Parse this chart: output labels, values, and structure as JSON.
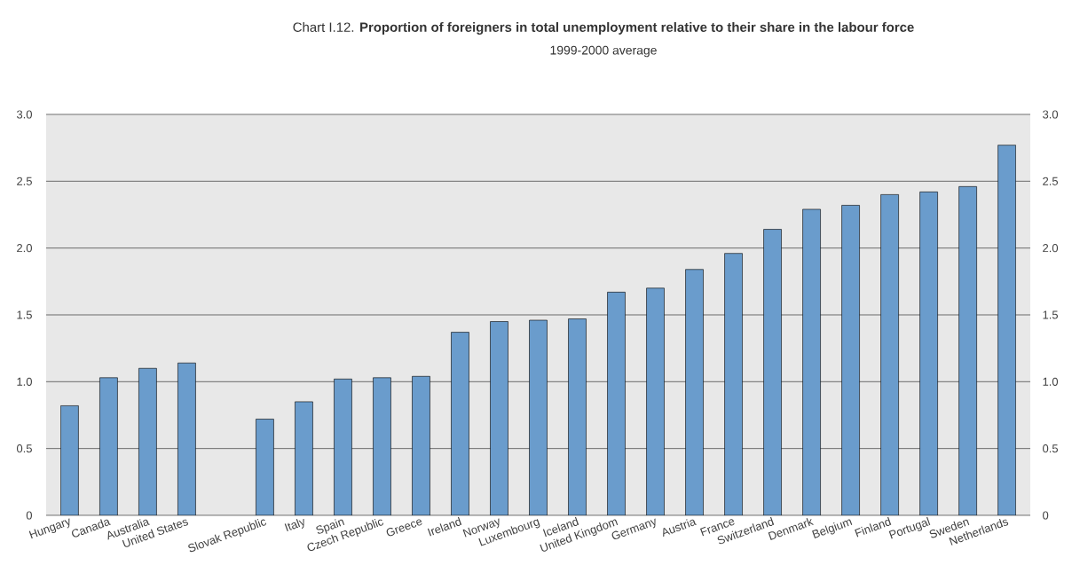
{
  "chart_data": {
    "type": "bar",
    "title": "Chart I.12. **Proportion of foreigners in total unemployment relative to their share in the labour force**",
    "subtitle": "1999-2000 average",
    "categories": [
      "Hungary",
      "Canada",
      "Australia",
      "United States",
      null,
      "Slovak Republic",
      "Italy",
      "Spain",
      "Czech Republic",
      "Greece",
      "Ireland",
      "Norway",
      "Luxembourg",
      "Iceland",
      "United Kingdom",
      "Germany",
      "Austria",
      "France",
      "Switzerland",
      "Denmark",
      "Belgium",
      "Finland",
      "Portugal",
      "Sweden",
      "Netherlands"
    ],
    "values": [
      0.82,
      1.03,
      1.1,
      1.14,
      null,
      0.72,
      0.85,
      1.02,
      1.03,
      1.04,
      1.37,
      1.45,
      1.46,
      1.47,
      1.67,
      1.7,
      1.84,
      1.96,
      2.14,
      2.29,
      2.32,
      2.4,
      2.42,
      2.46,
      2.77
    ],
    "color": "#6a9ccc",
    "ylim": [
      0,
      3
    ],
    "yticks": [
      0,
      {
        "value": 0.5,
        "label": "0.5"
      },
      {
        "value": 1,
        "label": "1.0"
      },
      {
        "value": 1.5,
        "label": "1.5"
      },
      {
        "value": 2,
        "label": "2.0"
      },
      {
        "value": 2.5,
        "label": "2.5"
      },
      {
        "value": 3,
        "label": "3.0"
      }
    ],
    "y2lim": [
      0,
      3
    ],
    "y2ticks": [
      0,
      {
        "value": 0.5,
        "label": "0.5"
      },
      {
        "value": 1,
        "label": "1.0"
      },
      {
        "value": 1.5,
        "label": "1.5"
      },
      {
        "value": 2,
        "label": "2.0"
      },
      {
        "value": 2.5,
        "label": "2.5"
      },
      {
        "value": 3,
        "label": "3.0"
      }
    ],
    "grid": "y"
  }
}
